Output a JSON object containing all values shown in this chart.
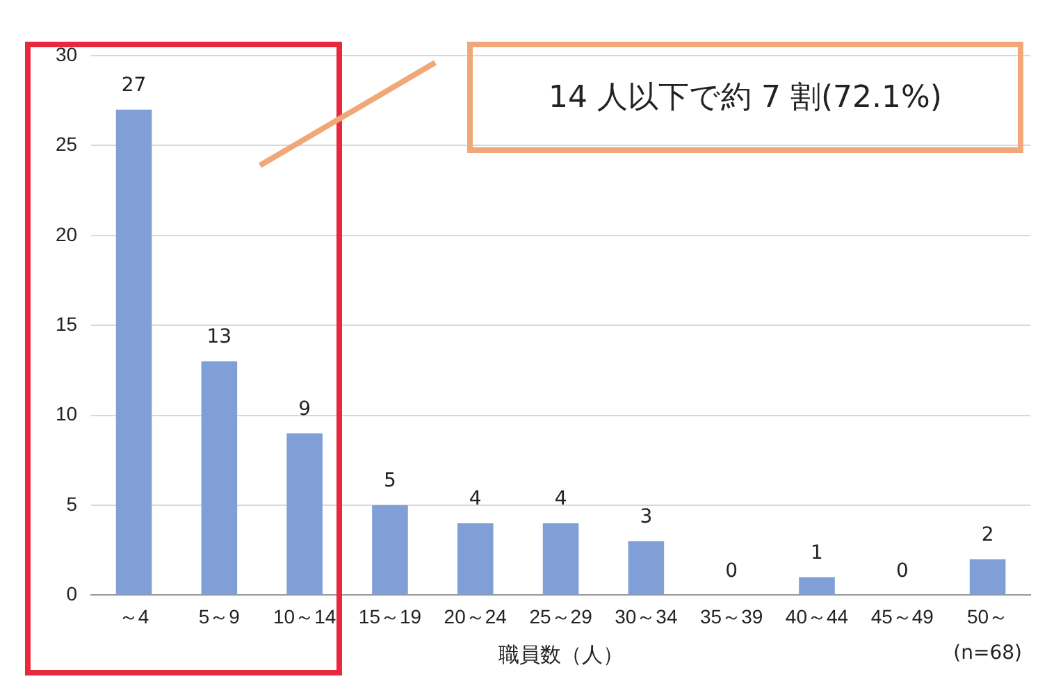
{
  "chart_data": {
    "type": "bar",
    "xlabel": "職員数（人）",
    "categories": [
      "～4",
      "5～9",
      "10～14",
      "15～19",
      "20～24",
      "25～29",
      "30～34",
      "35～39",
      "40～44",
      "45～49",
      "50～"
    ],
    "values": [
      27,
      13,
      9,
      5,
      4,
      4,
      3,
      0,
      1,
      0,
      2
    ],
    "color": "#7f9fd6",
    "ylim": [
      0,
      30
    ],
    "yticks": [
      0,
      5,
      10,
      15,
      20,
      25,
      30
    ],
    "grid": "y",
    "data_labels": true,
    "annotations": [
      "14 人以下で約 7 割(72.1%)",
      "(n=68)"
    ]
  }
}
